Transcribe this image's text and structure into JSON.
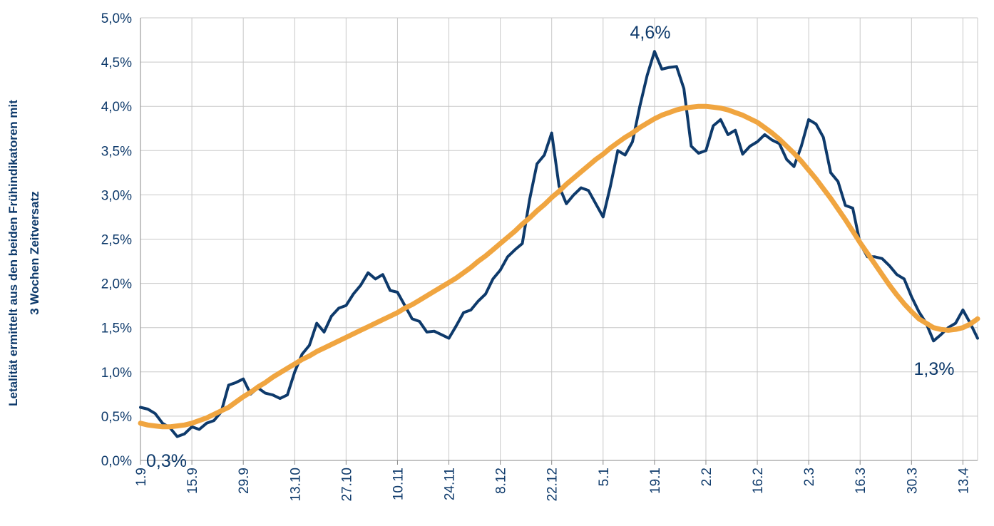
{
  "chart_data": {
    "type": "line",
    "y_label": [
      "Letalität ermittelt aus den beiden Frühindikatoren mit",
      "3 Wochen Zeitversatz"
    ],
    "categories": [
      "1.9",
      null,
      null,
      null,
      null,
      null,
      null,
      "15.9",
      null,
      null,
      null,
      null,
      null,
      null,
      "29.9",
      null,
      null,
      null,
      null,
      null,
      null,
      "13.10",
      null,
      null,
      null,
      null,
      null,
      null,
      "27.10",
      null,
      null,
      null,
      null,
      null,
      null,
      "10.11",
      null,
      null,
      null,
      null,
      null,
      null,
      "24.11",
      null,
      null,
      null,
      null,
      null,
      null,
      "8.12",
      null,
      null,
      null,
      null,
      null,
      null,
      "22.12",
      null,
      null,
      null,
      null,
      null,
      null,
      "5.1",
      null,
      null,
      null,
      null,
      null,
      null,
      "19.1",
      null,
      null,
      null,
      null,
      null,
      null,
      "2.2",
      null,
      null,
      null,
      null,
      null,
      null,
      "16.2",
      null,
      null,
      null,
      null,
      null,
      null,
      "2.3",
      null,
      null,
      null,
      null,
      null,
      null,
      "16.3",
      null,
      null,
      null,
      null,
      null,
      null,
      "30.3",
      null,
      null,
      null,
      null,
      null,
      null,
      "13.4",
      null,
      null
    ],
    "series": [
      {
        "color": "#0e3a6b",
        "values": [
          0.6,
          0.58,
          0.53,
          0.42,
          0.37,
          0.27,
          0.3,
          0.38,
          0.35,
          0.42,
          0.45,
          0.55,
          0.85,
          0.88,
          0.92,
          0.75,
          0.82,
          0.76,
          0.74,
          0.7,
          0.74,
          1.0,
          1.2,
          1.3,
          1.55,
          1.45,
          1.63,
          1.72,
          1.75,
          1.88,
          1.98,
          2.12,
          2.05,
          2.1,
          1.92,
          1.9,
          1.75,
          1.6,
          1.57,
          1.45,
          1.46,
          1.42,
          1.38,
          1.52,
          1.67,
          1.7,
          1.8,
          1.88,
          2.05,
          2.15,
          2.3,
          2.38,
          2.45,
          2.95,
          3.35,
          3.45,
          3.7,
          3.1,
          2.9,
          3.0,
          3.08,
          3.05,
          2.9,
          2.75,
          3.1,
          3.5,
          3.45,
          3.6,
          4.0,
          4.35,
          4.62,
          4.42,
          4.44,
          4.45,
          4.2,
          3.55,
          3.47,
          3.5,
          3.78,
          3.85,
          3.68,
          3.73,
          3.46,
          3.55,
          3.6,
          3.68,
          3.62,
          3.58,
          3.4,
          3.32,
          3.55,
          3.85,
          3.8,
          3.65,
          3.25,
          3.15,
          2.88,
          2.85,
          2.45,
          2.3,
          2.3,
          2.28,
          2.2,
          2.1,
          2.05,
          1.85,
          1.68,
          1.55,
          1.35,
          1.42,
          1.5,
          1.55,
          1.7,
          1.55,
          1.38
        ]
      },
      {
        "color": "#f0a540",
        "values": [
          0.42,
          0.4,
          0.39,
          0.38,
          0.38,
          0.39,
          0.4,
          0.42,
          0.45,
          0.48,
          0.52,
          0.56,
          0.6,
          0.66,
          0.72,
          0.77,
          0.83,
          0.88,
          0.94,
          0.99,
          1.04,
          1.09,
          1.14,
          1.18,
          1.23,
          1.27,
          1.31,
          1.35,
          1.39,
          1.43,
          1.47,
          1.51,
          1.55,
          1.59,
          1.63,
          1.67,
          1.72,
          1.76,
          1.81,
          1.86,
          1.91,
          1.96,
          2.01,
          2.06,
          2.12,
          2.18,
          2.25,
          2.31,
          2.38,
          2.45,
          2.52,
          2.59,
          2.67,
          2.74,
          2.82,
          2.89,
          2.97,
          3.04,
          3.12,
          3.19,
          3.26,
          3.33,
          3.4,
          3.46,
          3.53,
          3.59,
          3.65,
          3.7,
          3.76,
          3.81,
          3.86,
          3.9,
          3.93,
          3.96,
          3.98,
          3.99,
          4.0,
          4.0,
          3.99,
          3.98,
          3.96,
          3.93,
          3.9,
          3.86,
          3.82,
          3.76,
          3.7,
          3.63,
          3.55,
          3.47,
          3.38,
          3.28,
          3.18,
          3.07,
          2.96,
          2.84,
          2.72,
          2.59,
          2.46,
          2.34,
          2.22,
          2.1,
          1.98,
          1.87,
          1.77,
          1.68,
          1.6,
          1.55,
          1.5,
          1.48,
          1.47,
          1.48,
          1.5,
          1.54,
          1.6
        ]
      }
    ],
    "annotations": [
      {
        "value": 4.6,
        "label": "4,6%"
      },
      {
        "value": 0.3,
        "label": "0,3%"
      },
      {
        "value": 1.3,
        "label": "1,3%"
      }
    ],
    "ylim": [
      0,
      5
    ],
    "yticks": [
      {
        "value": 0,
        "label": "0,0%"
      },
      {
        "value": 0.5,
        "label": "0,5%"
      },
      {
        "value": 1,
        "label": "1,0%"
      },
      {
        "value": 1.5,
        "label": "1,5%"
      },
      {
        "value": 2,
        "label": "2,0%"
      },
      {
        "value": 2.5,
        "label": "2,5%"
      },
      {
        "value": 3,
        "label": "3,0%"
      },
      {
        "value": 3.5,
        "label": "3,5%"
      },
      {
        "value": 4,
        "label": "4,0%"
      },
      {
        "value": 4.5,
        "label": "4,5%"
      },
      {
        "value": 5,
        "label": "5,0%"
      }
    ],
    "grid": true
  }
}
